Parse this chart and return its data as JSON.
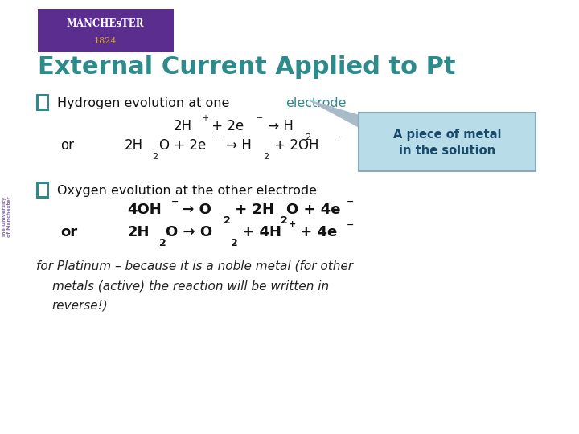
{
  "bg_color": "#ffffff",
  "title": "External Current Applied to Pt",
  "title_color": "#2E8B8B",
  "title_fontsize": 22,
  "header_box_color": "#5B2D8E",
  "bullet_color": "#5B2D8E",
  "bullet_outline": "#2E8B8B",
  "h2_label": "Hydrogen evolution at one ",
  "h2_electrode": "electrode",
  "h2_electrode_color": "#2E8B8B",
  "callout_text1": "A piece of metal",
  "callout_text2": "in the solution",
  "callout_bg": "#B8DCE8",
  "callout_border": "#8AABB8",
  "o2_label": "Oxygen evolution at the other electrode",
  "note_color": "#222222",
  "text_color": "#111111"
}
